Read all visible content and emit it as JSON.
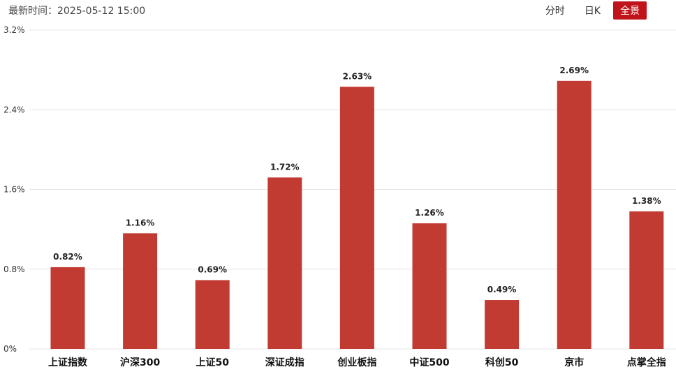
{
  "header": {
    "time_label": "最新时间：",
    "time_value": "2025-05-12 15:00"
  },
  "tabs": [
    {
      "label": "分时",
      "active": false
    },
    {
      "label": "日K",
      "active": false
    },
    {
      "label": "全景",
      "active": true
    }
  ],
  "colors": {
    "bar": "#c23b32",
    "active_tab": "#c0141a",
    "grid": "#e5e5e5"
  },
  "chart_data": {
    "type": "bar",
    "categories": [
      "上证指数",
      "沪深300",
      "上证50",
      "深证成指",
      "创业板指",
      "中证500",
      "科创50",
      "京市",
      "点掌全指"
    ],
    "values": [
      0.82,
      1.16,
      0.69,
      1.72,
      2.63,
      1.26,
      0.49,
      2.69,
      1.38
    ],
    "value_labels": [
      "0.82%",
      "1.16%",
      "0.69%",
      "1.72%",
      "2.63%",
      "1.26%",
      "0.49%",
      "2.69%",
      "1.38%"
    ],
    "ylim": [
      0,
      3.2
    ],
    "yticks": [
      0,
      0.8,
      1.6,
      2.4,
      3.2
    ],
    "ytick_labels": [
      "0%",
      "0.8%",
      "1.6%",
      "2.4%",
      "3.2%"
    ],
    "grid": true
  }
}
